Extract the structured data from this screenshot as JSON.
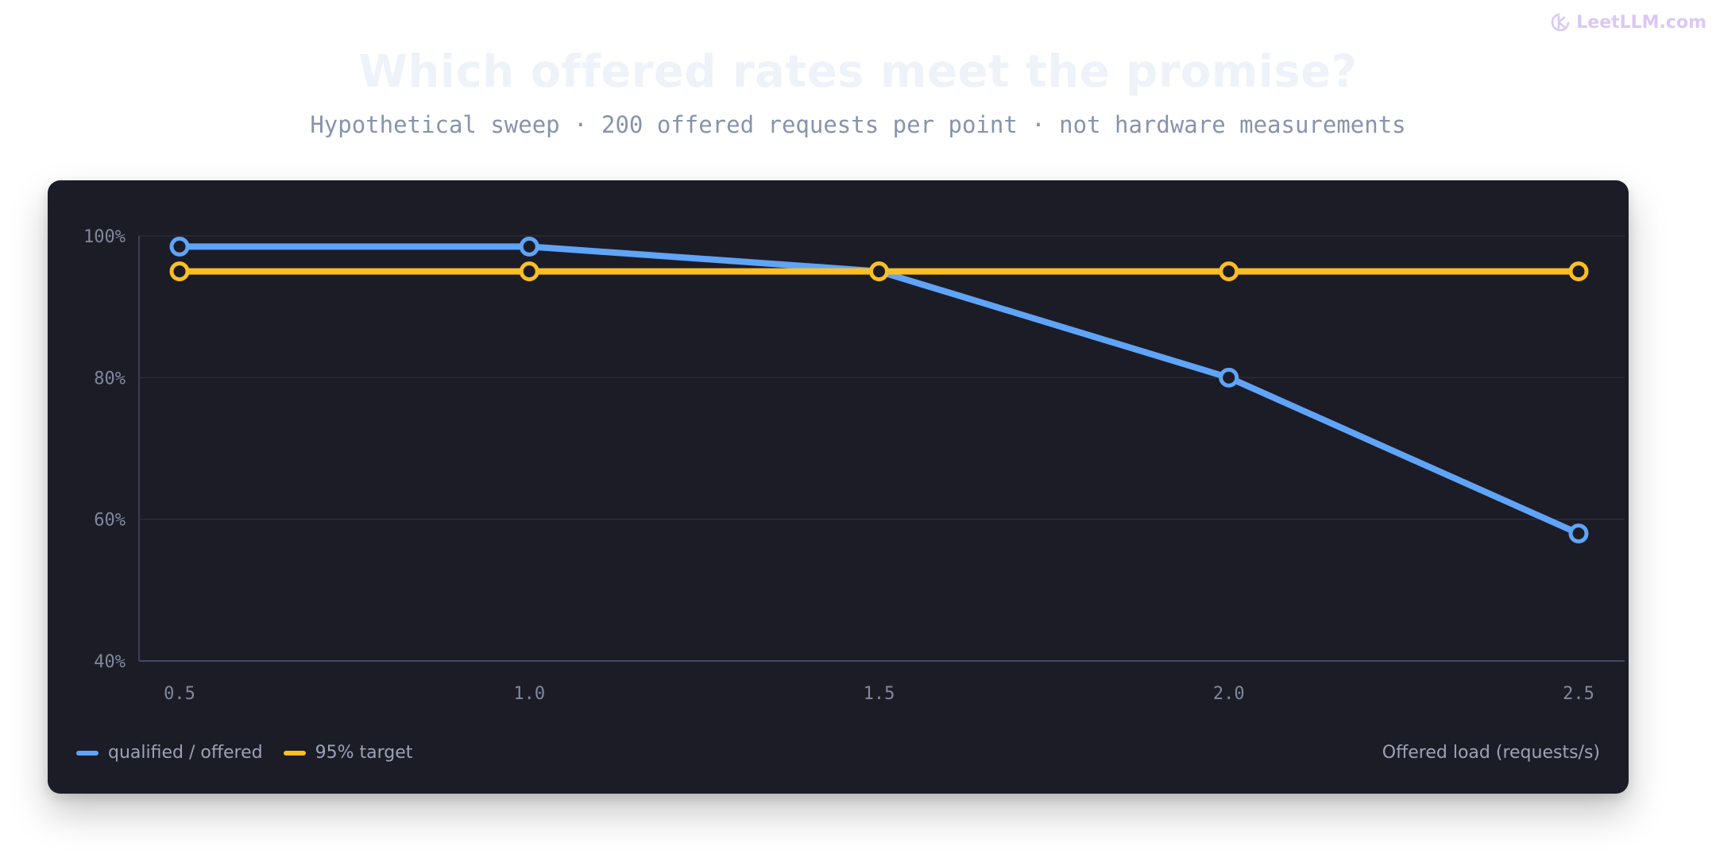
{
  "watermark": {
    "text": "LeetLLM.com",
    "color": "#d9c8f5"
  },
  "header": {
    "title": "Which offered rates meet the promise?",
    "subtitle": "Hypothetical sweep · 200 offered requests per point · not hardware measurements"
  },
  "chart_data": {
    "type": "line",
    "title": "Which offered rates meet the promise?",
    "subtitle": "Hypothetical sweep · 200 offered requests per point · not hardware measurements",
    "xlabel": "Offered load (requests/s)",
    "ylabel": "",
    "x": [
      0.5,
      1.0,
      1.5,
      2.0,
      2.5
    ],
    "x_tick_labels": [
      "0.5",
      "1.0",
      "1.5",
      "2.0",
      "2.5"
    ],
    "y_tick_values": [
      40,
      60,
      80,
      100
    ],
    "y_tick_labels": [
      "40%",
      "60%",
      "80%",
      "100%"
    ],
    "ylim": [
      40,
      100
    ],
    "grid": true,
    "legend_position": "bottom-left",
    "series": [
      {
        "name": "qualified / offered",
        "values": [
          98.5,
          98.5,
          95.0,
          80.0,
          58.0
        ],
        "color": "#5fa4f7"
      },
      {
        "name": "95% target",
        "values": [
          95,
          95,
          95,
          95,
          95
        ],
        "color": "#fbbf24"
      }
    ],
    "background": "#1c1c27"
  }
}
